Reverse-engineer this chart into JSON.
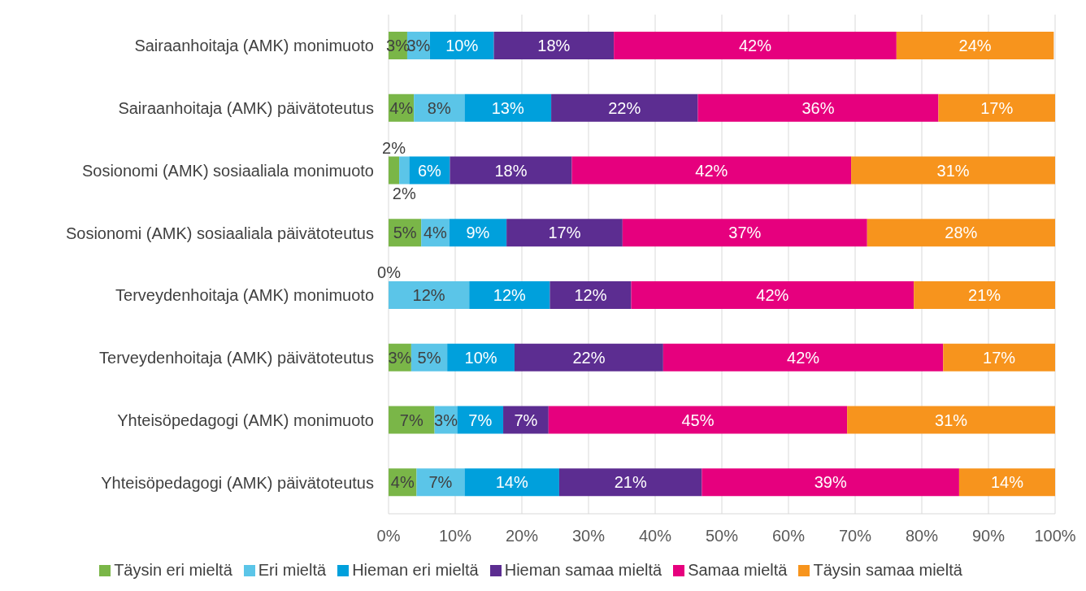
{
  "chart_data": {
    "type": "bar",
    "orientation": "horizontal",
    "stacked": true,
    "categories": [
      "Sairaanhoitaja (AMK) monimuoto",
      "Sairaanhoitaja (AMK) päivätoteutus",
      "Sosionomi (AMK) sosiaaliala monimuoto",
      "Sosionomi (AMK) sosiaaliala päivätoteutus",
      "Terveydenhoitaja (AMK) monimuoto",
      "Terveydenhoitaja (AMK) päivätoteutus",
      "Yhteisöpedagogi (AMK) monimuoto",
      "Yhteisöpedagogi (AMK) päivätoteutus"
    ],
    "series": [
      {
        "name": "Täysin eri mieltä",
        "color": "#7ab648",
        "values": [
          2.8,
          3.8,
          1.6,
          4.9,
          0,
          3.4,
          6.9,
          4.2
        ],
        "value_labels": [
          "3%",
          "4%",
          "2%",
          "5%",
          "0%",
          "3%",
          "7%",
          "4%"
        ]
      },
      {
        "name": "Eri mieltä",
        "color": "#5bc5e8",
        "values": [
          3.4,
          7.6,
          1.5,
          4.2,
          12.1,
          5.4,
          3.4,
          7.2
        ],
        "value_labels": [
          "3%",
          "8%",
          "2%",
          "4%",
          "12%",
          "5%",
          "3%",
          "7%"
        ]
      },
      {
        "name": "Hieman eri mieltä",
        "color": "#00a0dc",
        "values": [
          9.6,
          13.0,
          6.1,
          8.6,
          12.1,
          10.1,
          6.9,
          14.2
        ],
        "value_labels": [
          "10%",
          "13%",
          "6%",
          "9%",
          "12%",
          "10%",
          "7%",
          "14%"
        ]
      },
      {
        "name": "Hieman samaa mieltä",
        "color": "#5c2d91",
        "values": [
          18.0,
          22.0,
          18.3,
          17.4,
          12.2,
          22.3,
          6.8,
          21.4
        ],
        "value_labels": [
          "18%",
          "22%",
          "18%",
          "17%",
          "12%",
          "22%",
          "7%",
          "21%"
        ]
      },
      {
        "name": "Samaa mieltä",
        "color": "#e6007e",
        "values": [
          42.4,
          36.1,
          41.9,
          36.7,
          42.4,
          42.0,
          44.8,
          38.6
        ],
        "value_labels": [
          "42%",
          "36%",
          "42%",
          "37%",
          "42%",
          "42%",
          "45%",
          "39%"
        ]
      },
      {
        "name": "Täysin samaa mieltä",
        "color": "#f7941d",
        "values": [
          23.6,
          17.5,
          30.6,
          28.2,
          21.2,
          16.8,
          31.2,
          14.4
        ],
        "value_labels": [
          "24%",
          "17%",
          "31%",
          "28%",
          "21%",
          "17%",
          "31%",
          "14%"
        ]
      }
    ],
    "xlim": [
      0,
      100
    ],
    "xticks": [
      {
        "value": 0,
        "label": "0%"
      },
      {
        "value": 10,
        "label": "10%"
      },
      {
        "value": 20,
        "label": "20%"
      },
      {
        "value": 30,
        "label": "30%"
      },
      {
        "value": 40,
        "label": "40%"
      },
      {
        "value": 50,
        "label": "50%"
      },
      {
        "value": 60,
        "label": "60%"
      },
      {
        "value": 70,
        "label": "70%"
      },
      {
        "value": 80,
        "label": "80%"
      },
      {
        "value": 90,
        "label": "90%"
      },
      {
        "value": 100,
        "label": "100%"
      }
    ],
    "grid": "x",
    "legend": "bottom"
  }
}
